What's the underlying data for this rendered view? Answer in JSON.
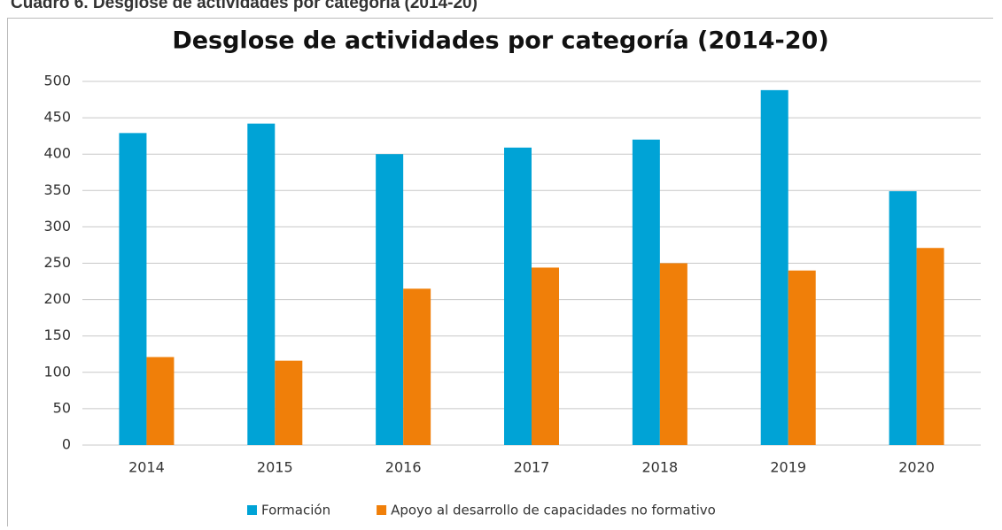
{
  "caption": "Cuadro 6. Desglose de actividades por categoría (2014-20)",
  "chart_data": {
    "type": "bar",
    "title": "Desglose de actividades por categoría (2014-20)",
    "categories": [
      "2014",
      "2015",
      "2016",
      "2017",
      "2018",
      "2019",
      "2020"
    ],
    "series": [
      {
        "name": "Formación",
        "color": "#00a3d6",
        "values": [
          429,
          442,
          400,
          409,
          420,
          488,
          349
        ]
      },
      {
        "name": "Apoyo al desarrollo de capacidades no formativo",
        "color": "#f07f09",
        "values": [
          121,
          116,
          215,
          244,
          250,
          240,
          271
        ]
      }
    ],
    "ylim": [
      0,
      500
    ],
    "yticks": [
      0,
      50,
      100,
      150,
      200,
      250,
      300,
      350,
      400,
      450,
      500
    ],
    "grid": true,
    "legend": "bottom"
  }
}
